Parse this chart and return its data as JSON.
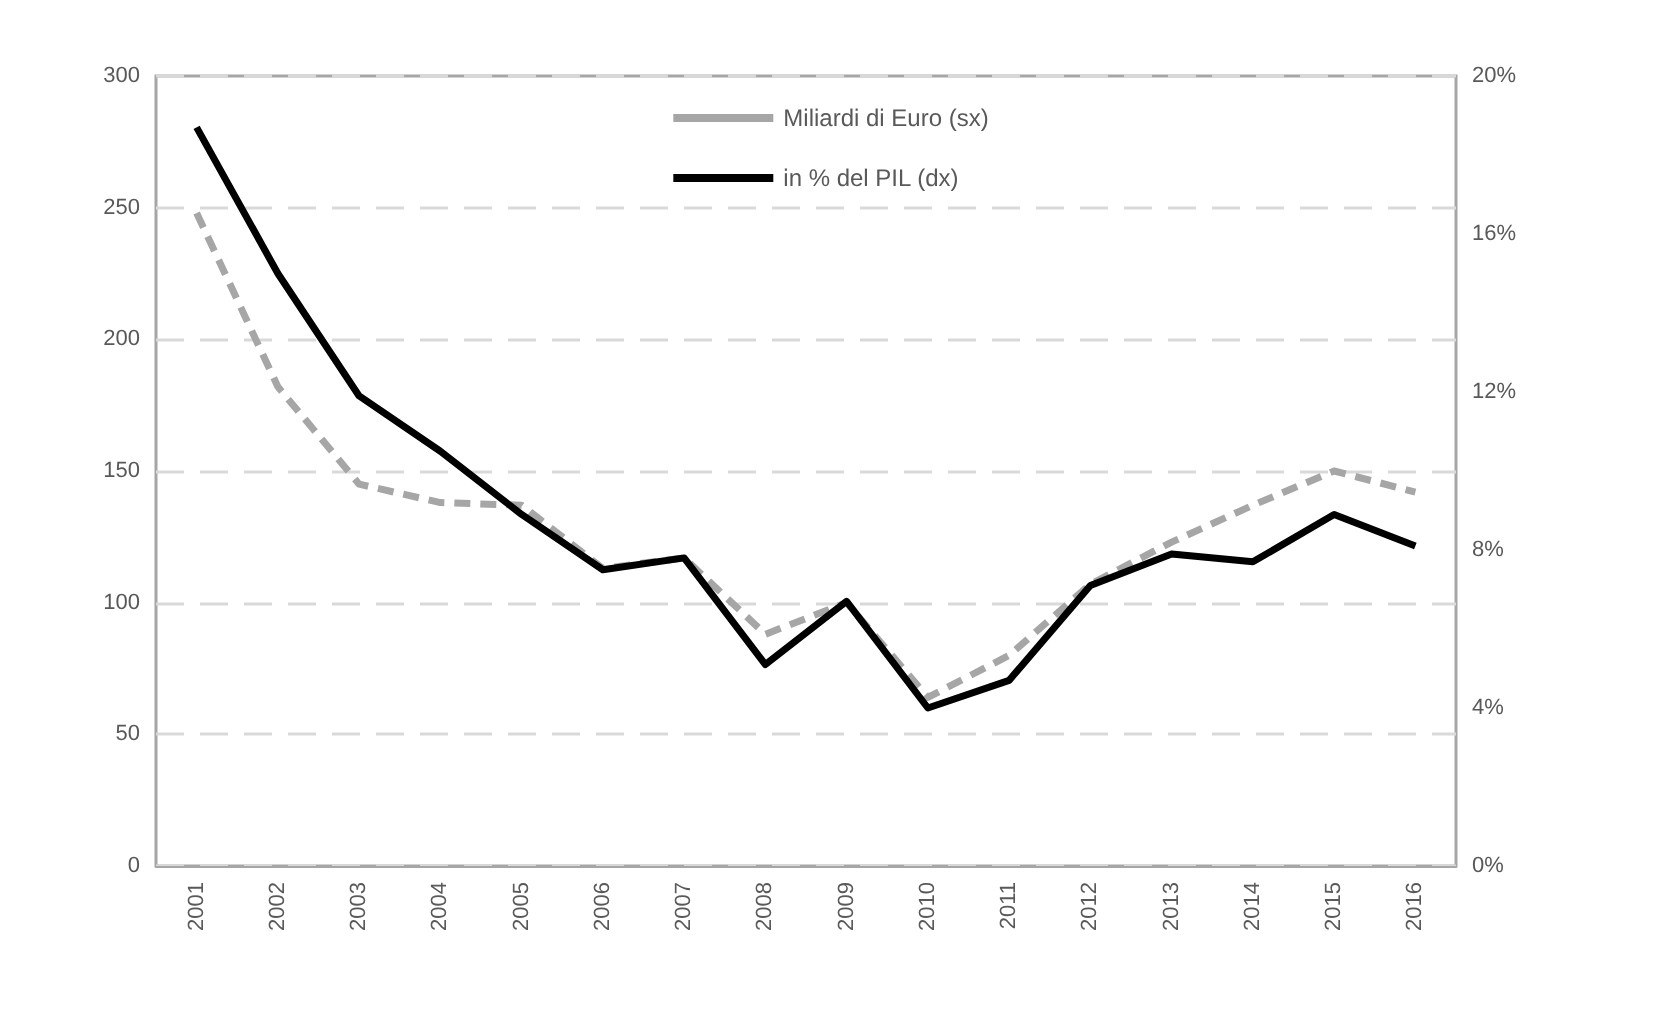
{
  "chart_data": {
    "type": "line",
    "categories": [
      "2001",
      "2002",
      "2003",
      "2004",
      "2005",
      "2006",
      "2007",
      "2008",
      "2009",
      "2010",
      "2011",
      "2012",
      "2013",
      "2014",
      "2015",
      "2016"
    ],
    "series": [
      {
        "name": "Miliardi di Euro (sx)",
        "color": "#a6a6a6",
        "line_style": "dashed",
        "values": [
          248,
          182,
          145,
          138,
          137,
          113,
          117,
          88,
          100,
          64,
          80,
          107,
          123,
          137,
          150,
          142
        ]
      },
      {
        "name": "in % del PIL (dx)",
        "color": "#000000",
        "line_style": "solid",
        "axis": "y2",
        "values": [
          18.7,
          15.0,
          11.9,
          10.5,
          8.9,
          7.5,
          7.8,
          5.1,
          6.7,
          4.0,
          4.7,
          7.1,
          7.9,
          7.7,
          8.9,
          8.1
        ]
      }
    ],
    "ylim": [
      0,
      300
    ],
    "yticks": [
      0,
      50,
      100,
      150,
      200,
      250,
      300
    ],
    "y2lim": [
      0,
      20
    ],
    "y2ticks": [
      {
        "value": 0,
        "label": "0%"
      },
      {
        "value": 4,
        "label": "4%"
      },
      {
        "value": 8,
        "label": "8%"
      },
      {
        "value": 12,
        "label": "12%"
      },
      {
        "value": 16,
        "label": "16%"
      },
      {
        "value": 20,
        "label": "20%"
      }
    ],
    "grid": "y",
    "legend": "top",
    "marker": "none"
  }
}
